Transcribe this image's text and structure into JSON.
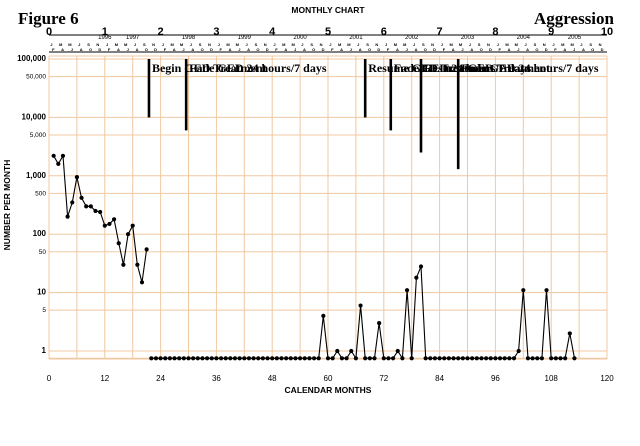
{
  "figure_label": "Figure 6",
  "chart_title": "MONTHLY CHART",
  "behavior_label": "Aggression",
  "xlabel": "CALENDAR MONTHS",
  "ylabel": "NUMBER PER MONTH",
  "colors": {
    "grid": "#f0c8a0",
    "ink": "#000000",
    "background": "#ffffff"
  },
  "chart_data": {
    "type": "line",
    "title": "MONTHLY CHART",
    "xlabel": "CALENDAR MONTHS",
    "ylabel": "NUMBER PER MONTH",
    "y_scale": "log",
    "xlim": [
      0,
      120
    ],
    "ylim": [
      0.5,
      100000
    ],
    "grid": true,
    "x_ticks": [
      0,
      12,
      24,
      36,
      48,
      60,
      72,
      84,
      96,
      108,
      120
    ],
    "y_ticks": [
      {
        "value": 1,
        "label": "1"
      },
      {
        "value": 5,
        "label": "5"
      },
      {
        "value": 10,
        "label": "10"
      },
      {
        "value": 50,
        "label": "50"
      },
      {
        "value": 100,
        "label": "100"
      },
      {
        "value": 500,
        "label": "500"
      },
      {
        "value": 1000,
        "label": "1,000"
      },
      {
        "value": 5000,
        "label": "5,000"
      },
      {
        "value": 10000,
        "label": "10,000"
      },
      {
        "value": 50000,
        "label": "50,000"
      },
      {
        "value": 100000,
        "label": "100,000"
      }
    ],
    "top_year_numbers": [
      "0",
      "1",
      "2",
      "3",
      "4",
      "5",
      "6",
      "7",
      "8",
      "9",
      "10"
    ],
    "year_labels": [
      "1996",
      "1997",
      "1998",
      "1999",
      "2000",
      "2001",
      "2002",
      "2003",
      "2004",
      "2005"
    ],
    "year_label_months": [
      12,
      18,
      30,
      42,
      54,
      66,
      78,
      90,
      102,
      113
    ],
    "month_row_top": [
      "J",
      "M",
      "M",
      "J",
      "S",
      "N"
    ],
    "month_row_bottom": [
      "F",
      "A",
      "J",
      "A",
      "O",
      "D"
    ],
    "zero_line": 0.75,
    "series": [
      {
        "points": [
          [
            1,
            2200
          ],
          [
            2,
            1600
          ],
          [
            3,
            2200
          ],
          [
            4,
            200
          ],
          [
            5,
            350
          ],
          [
            6,
            950
          ],
          [
            7,
            420
          ],
          [
            8,
            300
          ],
          [
            9,
            300
          ],
          [
            10,
            250
          ],
          [
            11,
            240
          ],
          [
            12,
            140
          ],
          [
            13,
            150
          ],
          [
            14,
            180
          ],
          [
            15,
            70
          ],
          [
            16,
            30
          ],
          [
            17,
            100
          ],
          [
            18,
            140
          ],
          [
            19,
            30
          ],
          [
            20,
            15
          ],
          [
            21,
            55
          ]
        ]
      },
      {
        "points": [
          [
            22,
            0.75
          ],
          [
            23,
            0.75
          ],
          [
            24,
            0.75
          ],
          [
            25,
            0.75
          ],
          [
            26,
            0.75
          ],
          [
            27,
            0.75
          ],
          [
            28,
            0.75
          ],
          [
            29,
            0.75
          ],
          [
            30,
            0.75
          ],
          [
            31,
            0.75
          ],
          [
            32,
            0.75
          ],
          [
            33,
            0.75
          ],
          [
            34,
            0.75
          ],
          [
            35,
            0.75
          ],
          [
            36,
            0.75
          ],
          [
            37,
            0.75
          ],
          [
            38,
            0.75
          ],
          [
            39,
            0.75
          ],
          [
            40,
            0.75
          ],
          [
            41,
            0.75
          ],
          [
            42,
            0.75
          ],
          [
            43,
            0.75
          ],
          [
            44,
            0.75
          ],
          [
            45,
            0.75
          ],
          [
            46,
            0.75
          ],
          [
            47,
            0.75
          ],
          [
            48,
            0.75
          ],
          [
            49,
            0.75
          ],
          [
            50,
            0.75
          ],
          [
            51,
            0.75
          ],
          [
            52,
            0.75
          ],
          [
            53,
            0.75
          ],
          [
            54,
            0.75
          ],
          [
            55,
            0.75
          ],
          [
            56,
            0.75
          ],
          [
            57,
            0.75
          ],
          [
            58,
            0.75
          ],
          [
            59,
            4
          ],
          [
            60,
            0.75
          ],
          [
            61,
            0.75
          ],
          [
            62,
            1
          ],
          [
            63,
            0.75
          ],
          [
            64,
            0.75
          ],
          [
            65,
            1
          ],
          [
            66,
            0.75
          ],
          [
            67,
            6
          ],
          [
            68,
            0.75
          ],
          [
            69,
            0.75
          ],
          [
            70,
            0.75
          ],
          [
            71,
            3
          ],
          [
            72,
            0.75
          ],
          [
            73,
            0.75
          ],
          [
            74,
            0.75
          ],
          [
            75,
            1
          ],
          [
            76,
            0.75
          ],
          [
            77,
            11
          ],
          [
            78,
            0.75
          ],
          [
            79,
            18
          ],
          [
            80,
            28
          ],
          [
            81,
            0.75
          ],
          [
            82,
            0.75
          ],
          [
            83,
            0.75
          ],
          [
            84,
            0.75
          ],
          [
            85,
            0.75
          ],
          [
            86,
            0.75
          ],
          [
            87,
            0.75
          ],
          [
            88,
            0.75
          ],
          [
            89,
            0.75
          ],
          [
            90,
            0.75
          ],
          [
            91,
            0.75
          ],
          [
            92,
            0.75
          ],
          [
            93,
            0.75
          ],
          [
            94,
            0.75
          ],
          [
            95,
            0.75
          ],
          [
            96,
            0.75
          ],
          [
            97,
            0.75
          ],
          [
            98,
            0.75
          ],
          [
            99,
            0.75
          ],
          [
            100,
            0.75
          ],
          [
            101,
            1
          ],
          [
            102,
            11
          ],
          [
            103,
            0.75
          ],
          [
            104,
            0.75
          ],
          [
            105,
            0.75
          ],
          [
            106,
            0.75
          ],
          [
            107,
            11
          ],
          [
            108,
            0.75
          ],
          [
            109,
            0.75
          ],
          [
            110,
            0.75
          ],
          [
            111,
            0.75
          ],
          [
            112,
            2
          ],
          [
            113,
            0.75
          ]
        ]
      }
    ],
    "phase_changes": [
      {
        "label": "Begin GED Treatment",
        "month": 21.5,
        "y_bottom": 10000
      },
      {
        "label": "Fade GED 24 hours/7 days",
        "month": 29.5,
        "y_bottom": 6000
      },
      {
        "label": "Resume GED Treatment",
        "month": 68,
        "y_bottom": 10000
      },
      {
        "label": "Fade GED 24 hours/7 days",
        "month": 73.5,
        "y_bottom": 6000
      },
      {
        "label": "Resume GED Treatment",
        "month": 80,
        "y_bottom": 2500
      },
      {
        "label": "Fade GED 24 hours/7 days",
        "month": 88,
        "y_bottom": 1300
      }
    ]
  }
}
